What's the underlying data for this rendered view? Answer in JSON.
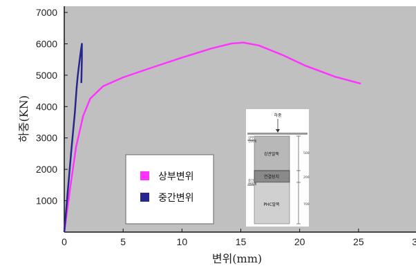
{
  "chart_data": {
    "type": "line",
    "xlabel": "변위(mm)",
    "ylabel": "하중(KN)",
    "xlim": [
      0,
      30
    ],
    "ylim": [
      0,
      7000
    ],
    "x_ticks": [
      "0",
      "5",
      "10",
      "15",
      "20",
      "25",
      "30"
    ],
    "y_ticks": [
      "1000",
      "2000",
      "3000",
      "4000",
      "5000",
      "6000",
      "7000"
    ],
    "grid": false,
    "legend_position": "center",
    "series": [
      {
        "name": "상부변위",
        "color": "#ff33ff",
        "points": [
          [
            0,
            0
          ],
          [
            0.5,
            1400
          ],
          [
            1.0,
            2700
          ],
          [
            1.6,
            3700
          ],
          [
            2.2,
            4250
          ],
          [
            3.3,
            4650
          ],
          [
            5,
            4930
          ],
          [
            7.5,
            5250
          ],
          [
            10,
            5560
          ],
          [
            12.5,
            5850
          ],
          [
            14.2,
            6010
          ],
          [
            15.2,
            6040
          ],
          [
            16.5,
            5950
          ],
          [
            18.5,
            5650
          ],
          [
            20.5,
            5300
          ],
          [
            23,
            4950
          ],
          [
            25.2,
            4730
          ]
        ]
      },
      {
        "name": "중간변위",
        "color": "#26268c",
        "points": [
          [
            0,
            0
          ],
          [
            0.3,
            1300
          ],
          [
            0.6,
            2600
          ],
          [
            0.9,
            3800
          ],
          [
            1.05,
            4600
          ],
          [
            1.15,
            5000
          ],
          [
            1.28,
            5400
          ],
          [
            1.4,
            5750
          ],
          [
            1.5,
            6000
          ],
          [
            1.5,
            5500
          ],
          [
            1.45,
            4750
          ]
        ]
      }
    ],
    "inset": {
      "top_label": "하중",
      "left_label_top": "상부\n변위계",
      "left_label_bottom": "중간\n변위계",
      "segments": [
        {
          "label": "강관말뚝",
          "dimension": "500"
        },
        {
          "label": "연결장치",
          "dimension": "200"
        },
        {
          "label": "PHC말뚝",
          "dimension": "700"
        }
      ]
    }
  }
}
